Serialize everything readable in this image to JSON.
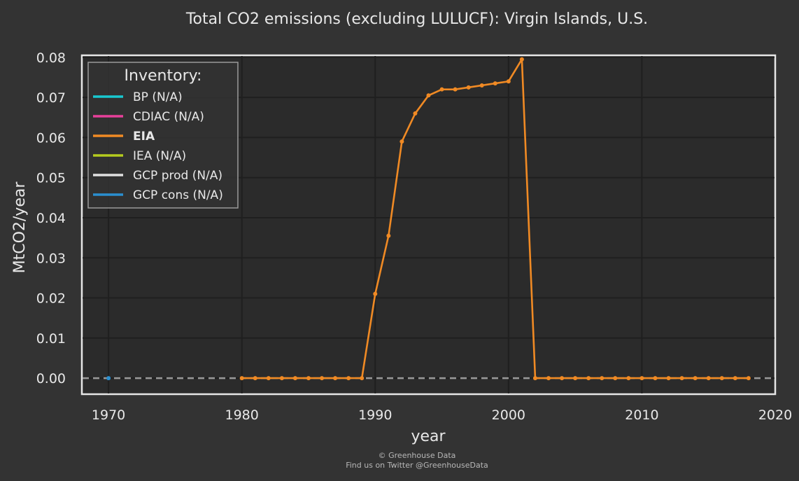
{
  "chart_data": {
    "type": "line",
    "title": "Total CO2 emissions (excluding LULUCF): Virgin Islands, U.S.",
    "xlabel": "year",
    "ylabel": "MtCO2/year",
    "xlim": [
      1968,
      2020
    ],
    "ylim": [
      -0.004,
      0.0805
    ],
    "x_ticks": [
      "1970",
      "1980",
      "1990",
      "2000",
      "2010",
      "2020"
    ],
    "y_ticks": [
      "0.00",
      "0.01",
      "0.02",
      "0.03",
      "0.04",
      "0.05",
      "0.06",
      "0.07",
      "0.08"
    ],
    "grid": true,
    "legend": {
      "title": "Inventory:",
      "placement": "top-left",
      "items": [
        {
          "label": "BP (N/A)",
          "color": "#18c8d0",
          "bold": false
        },
        {
          "label": "CDIAC (N/A)",
          "color": "#e8409a",
          "bold": false
        },
        {
          "label": "EIA",
          "color": "#f08a24",
          "bold": true
        },
        {
          "label": "IEA (N/A)",
          "color": "#b5cc1e",
          "bold": false
        },
        {
          "label": "GCP prod (N/A)",
          "color": "#e0e0e0",
          "bold": false
        },
        {
          "label": "GCP cons (N/A)",
          "color": "#2a8fd0",
          "bold": false
        }
      ]
    },
    "series": [
      {
        "name": "EIA",
        "color": "#f08a24",
        "x": [
          1980,
          1981,
          1982,
          1983,
          1984,
          1985,
          1986,
          1987,
          1988,
          1989,
          1990,
          1991,
          1992,
          1993,
          1994,
          1995,
          1996,
          1997,
          1998,
          1999,
          2000,
          2001,
          2002,
          2003,
          2004,
          2005,
          2006,
          2007,
          2008,
          2009,
          2010,
          2011,
          2012,
          2013,
          2014,
          2015,
          2016,
          2017,
          2018
        ],
        "values": [
          0,
          0,
          0,
          0,
          0,
          0,
          0,
          0,
          0,
          0,
          0.021,
          0.0355,
          0.059,
          0.066,
          0.0705,
          0.072,
          0.072,
          0.0725,
          0.073,
          0.0735,
          0.074,
          0.0795,
          0,
          0,
          0,
          0,
          0,
          0,
          0,
          0,
          0,
          0,
          0,
          0,
          0,
          0,
          0,
          0,
          0
        ]
      },
      {
        "name": "GCP cons (N/A)",
        "color": "#2a8fd0",
        "x": [
          1970
        ],
        "values": [
          0
        ]
      }
    ],
    "zero_line": {
      "value": 0,
      "style": "dashed",
      "color": "#9a9a9a"
    }
  },
  "credits": {
    "line1": "© Greenhouse Data",
    "line2": "Find us on Twitter @GreenhouseData"
  }
}
